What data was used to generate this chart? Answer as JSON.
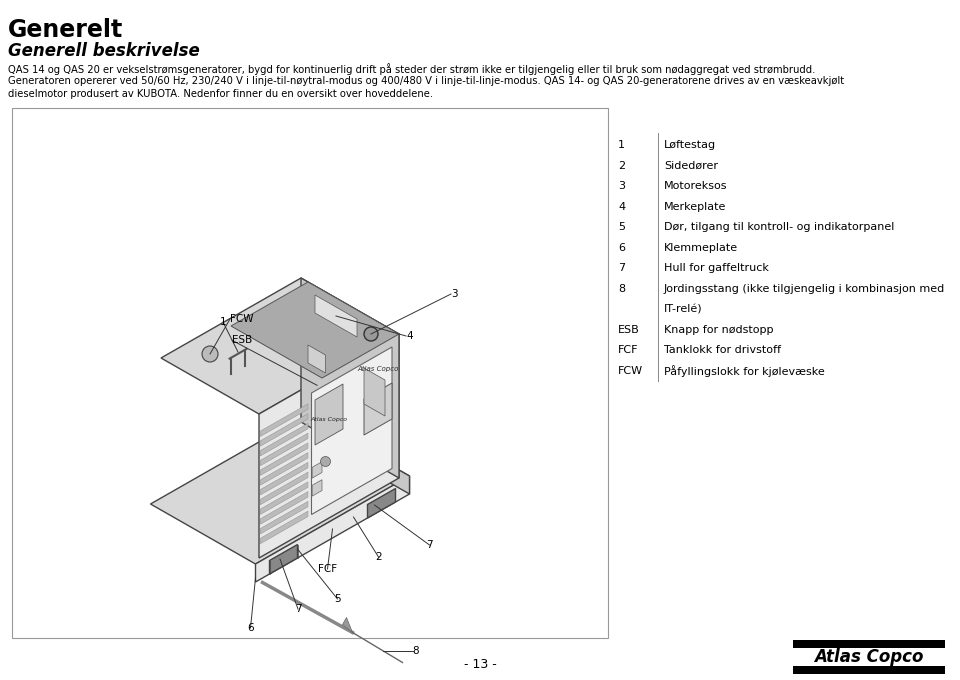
{
  "title": "Generelt",
  "subtitle": "Generell beskrivelse",
  "body_line1": "QAS 14 og QAS 20 er vekselstrømsgeneratorer, bygd for kontinuerlig drift på steder der strøm ikke er tilgjengelig eller til bruk som nødaggregat ved strømbrudd.",
  "body_line2": "Generatoren opererer ved 50/60 Hz, 230/240 V i linje-til-nøytral-modus og 400/480 V i linje-til-linje-modus. QAS 14- og QAS 20-generatorene drives av en væskeavkjølt",
  "body_line3": "dieselmotor produsert av KUBOTA. Nedenfor finner du en oversikt over hoveddelene.",
  "page_number": "- 13 -",
  "legend_items": [
    {
      "key": "1",
      "value": "Løftestag"
    },
    {
      "key": "2",
      "value": "Sidedører"
    },
    {
      "key": "3",
      "value": "Motoreksos"
    },
    {
      "key": "4",
      "value": "Merkeplate"
    },
    {
      "key": "5",
      "value": "Dør, tilgang til kontroll- og indikatorpanel"
    },
    {
      "key": "6",
      "value": "Klemmeplate"
    },
    {
      "key": "7",
      "value": "Hull for gaffeltruck"
    },
    {
      "key": "8",
      "value": "Jordingsstang (ikke tilgjengelig i kombinasjon med"
    },
    {
      "key": "",
      "value": "IT-relé)"
    },
    {
      "key": "ESB",
      "value": "Knapp for nødstopp"
    },
    {
      "key": "FCF",
      "value": "Tanklokk for drivstoff"
    },
    {
      "key": "FCW",
      "value": "Påfyllingslokk for kjølevæske"
    }
  ],
  "bg_color": "#ffffff",
  "text_color": "#000000",
  "diagram_border": "#777777",
  "diagram_bg": "#ffffff"
}
